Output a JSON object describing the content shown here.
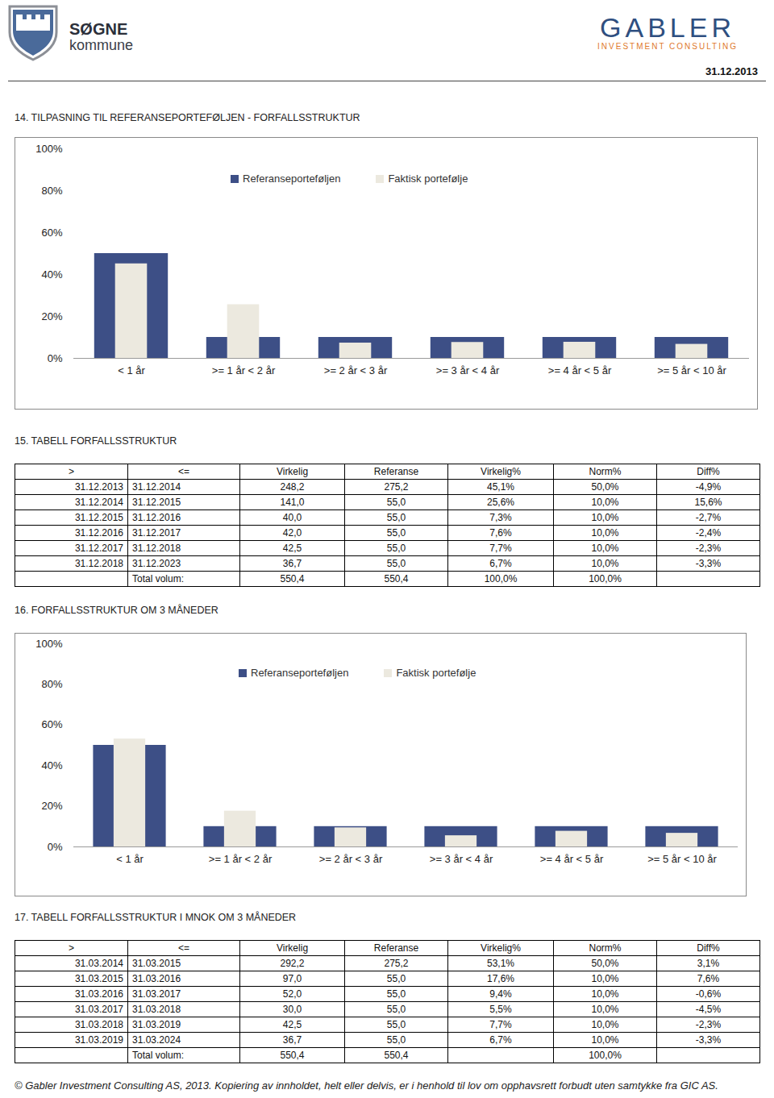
{
  "header": {
    "logo_left": {
      "name": "SØGNE",
      "sub": "kommune"
    },
    "logo_right": {
      "name": "GABLER",
      "sub": "INVESTMENT CONSULTING"
    },
    "date": "31.12.2013"
  },
  "chart_data": [
    {
      "type": "bar",
      "title": "14. TILPASNING TIL REFERANSEPORTEFØLJEN - FORFALLSSTRUKTUR",
      "categories": [
        "< 1 år",
        ">= 1 år < 2 år",
        ">= 2 år < 3 år",
        ">= 3 år < 4 år",
        ">= 4 år < 5 år",
        ">= 5 år < 10 år"
      ],
      "series": [
        {
          "name": "Referanseporteføljen",
          "color": "#3d4f86",
          "values": [
            50,
            10,
            10,
            10,
            10,
            10
          ]
        },
        {
          "name": "Faktisk portefølje",
          "color": "#ece9df",
          "values": [
            45.1,
            25.6,
            7.3,
            7.6,
            7.7,
            6.7
          ]
        }
      ],
      "ylim": [
        0,
        100
      ],
      "yticks": [
        {
          "value": 0,
          "label": "0%"
        },
        {
          "value": 20,
          "label": "20%"
        },
        {
          "value": 40,
          "label": "40%"
        },
        {
          "value": 60,
          "label": "60%"
        },
        {
          "value": 80,
          "label": "80%"
        },
        {
          "value": 100,
          "label": "100%"
        }
      ],
      "grid": false,
      "legend": "top"
    },
    {
      "type": "bar",
      "title": "16. FORFALLSSTRUKTUR OM 3 MÅNEDER",
      "categories": [
        "< 1 år",
        ">= 1 år < 2 år",
        ">= 2 år < 3 år",
        ">= 3 år < 4 år",
        ">= 4 år < 5 år",
        ">= 5 år < 10 år"
      ],
      "series": [
        {
          "name": "Referanseporteføljen",
          "color": "#3d4f86",
          "values": [
            50,
            10,
            10,
            10,
            10,
            10
          ]
        },
        {
          "name": "Faktisk portefølje",
          "color": "#ece9df",
          "values": [
            53.1,
            17.6,
            9.4,
            5.5,
            7.7,
            6.7
          ]
        }
      ],
      "ylim": [
        0,
        100
      ],
      "yticks": [
        {
          "value": 0,
          "label": "0%"
        },
        {
          "value": 20,
          "label": "20%"
        },
        {
          "value": 40,
          "label": "40%"
        },
        {
          "value": 60,
          "label": "60%"
        },
        {
          "value": 80,
          "label": "80%"
        },
        {
          "value": 100,
          "label": "100%"
        }
      ],
      "grid": false,
      "legend": "top"
    }
  ],
  "tables": [
    {
      "title": "15. TABELL FORFALLSSTRUKTUR",
      "columns": [
        ">",
        "<=",
        "Virkelig",
        "Referanse",
        "Virkelig%",
        "Norm%",
        "Diff%"
      ],
      "rows": [
        [
          "31.12.2013",
          "31.12.2014",
          "248,2",
          "275,2",
          "45,1%",
          "50,0%",
          "-4,9%"
        ],
        [
          "31.12.2014",
          "31.12.2015",
          "141,0",
          "55,0",
          "25,6%",
          "10,0%",
          "15,6%"
        ],
        [
          "31.12.2015",
          "31.12.2016",
          "40,0",
          "55,0",
          "7,3%",
          "10,0%",
          "-2,7%"
        ],
        [
          "31.12.2016",
          "31.12.2017",
          "42,0",
          "55,0",
          "7,6%",
          "10,0%",
          "-2,4%"
        ],
        [
          "31.12.2017",
          "31.12.2018",
          "42,5",
          "55,0",
          "7,7%",
          "10,0%",
          "-2,3%"
        ],
        [
          "31.12.2018",
          "31.12.2023",
          "36,7",
          "55,0",
          "6,7%",
          "10,0%",
          "-3,3%"
        ]
      ],
      "total": {
        "label": "Total volum:",
        "values": [
          "550,4",
          "550,4",
          "100,0%",
          "100,0%"
        ]
      }
    },
    {
      "title": "17. TABELL FORFALLSSTRUKTUR I MNOK OM 3 MÅNEDER",
      "columns": [
        ">",
        "<=",
        "Virkelig",
        "Referanse",
        "Virkelig%",
        "Norm%",
        "Diff%"
      ],
      "rows": [
        [
          "31.03.2014",
          "31.03.2015",
          "292,2",
          "275,2",
          "53,1%",
          "50,0%",
          "3,1%"
        ],
        [
          "31.03.2015",
          "31.03.2016",
          "97,0",
          "55,0",
          "17,6%",
          "10,0%",
          "7,6%"
        ],
        [
          "31.03.2016",
          "31.03.2017",
          "52,0",
          "55,0",
          "9,4%",
          "10,0%",
          "-0,6%"
        ],
        [
          "31.03.2017",
          "31.03.2018",
          "30,0",
          "55,0",
          "5,5%",
          "10,0%",
          "-4,5%"
        ],
        [
          "31.03.2018",
          "31.03.2019",
          "42,5",
          "55,0",
          "7,7%",
          "10,0%",
          "-2,3%"
        ],
        [
          "31.03.2019",
          "31.03.2024",
          "36,7",
          "55,0",
          "6,7%",
          "10,0%",
          "-3,3%"
        ]
      ],
      "total": {
        "label": "Total volum:",
        "values": [
          "550,4",
          "550,4",
          null,
          "100,0%"
        ]
      }
    }
  ],
  "footer": "© Gabler Investment Consulting AS, 2013. Kopiering av innholdet, helt eller delvis, er i henhold til lov om opphavsrett forbudt uten samtykke fra GIC AS."
}
